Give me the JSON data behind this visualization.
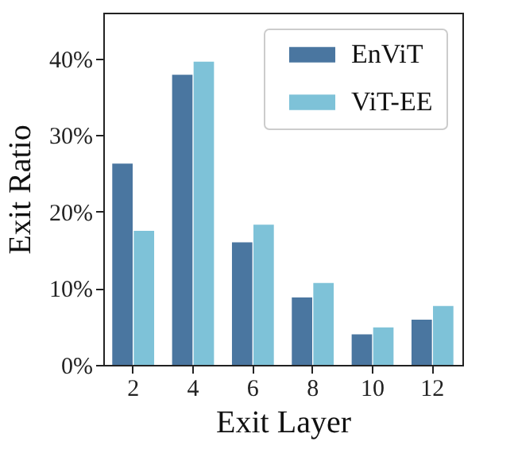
{
  "chart_data": {
    "type": "bar",
    "xlabel": "Exit Layer",
    "ylabel": "Exit Ratio",
    "categories": [
      "2",
      "4",
      "6",
      "8",
      "10",
      "12"
    ],
    "series": [
      {
        "name": "EnViT",
        "color": "#4a76a0",
        "values": [
          26.3,
          37.9,
          16.0,
          8.8,
          4.0,
          5.9
        ]
      },
      {
        "name": "ViT-EE",
        "color": "#7ec2d8",
        "values": [
          17.5,
          39.6,
          18.3,
          10.7,
          4.9,
          7.7
        ]
      }
    ],
    "ylim": [
      0,
      46
    ],
    "yticks": [
      {
        "value": 0,
        "label": "0%"
      },
      {
        "value": 10,
        "label": "10%"
      },
      {
        "value": 20,
        "label": "20%"
      },
      {
        "value": 30,
        "label": "30%"
      },
      {
        "value": 40,
        "label": "40%"
      }
    ],
    "grid": false,
    "legend": "top right"
  }
}
